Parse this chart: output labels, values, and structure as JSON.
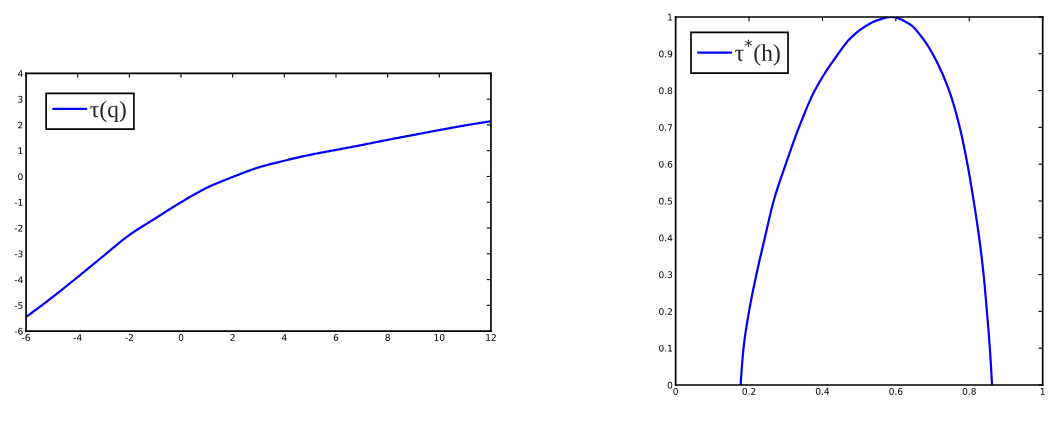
{
  "chart_data": [
    {
      "type": "line",
      "x": [
        -6,
        -5,
        -4,
        -3,
        -2,
        -1,
        0,
        1,
        2,
        3,
        4,
        5,
        6,
        7,
        8,
        9,
        10,
        11,
        12
      ],
      "series": [
        {
          "name": "τ(q)",
          "color": "#0000ff",
          "values": [
            -5.45,
            -4.7,
            -3.9,
            -3.08,
            -2.27,
            -1.63,
            -1.0,
            -0.44,
            -0.02,
            0.35,
            0.61,
            0.84,
            1.03,
            1.22,
            1.42,
            1.61,
            1.8,
            1.98,
            2.14
          ]
        }
      ],
      "xlim": [
        -6,
        12
      ],
      "xticks": [
        -6,
        -4,
        -2,
        0,
        2,
        4,
        6,
        8,
        10,
        12
      ],
      "ylim": [
        -6,
        4
      ],
      "yticks": [
        -6,
        -5,
        -4,
        -3,
        -2,
        -1,
        0,
        1,
        2,
        3,
        4
      ],
      "legend": "top left",
      "line_style": "solid"
    },
    {
      "type": "line",
      "x": [
        0.177,
        0.185,
        0.2,
        0.22,
        0.243,
        0.267,
        0.3,
        0.336,
        0.379,
        0.443,
        0.474,
        0.51,
        0.547,
        0.588,
        0.638,
        0.67,
        0.7,
        0.745,
        0.774,
        0.795,
        0.812,
        0.827,
        0.839,
        0.848,
        0.856,
        0.862
      ],
      "series": [
        {
          "name": "τ$^{*}$(h)",
          "color": "#0000ff",
          "values": [
            0,
            0.1,
            0.2,
            0.3,
            0.4,
            0.5,
            0.6,
            0.7,
            0.8,
            0.9,
            0.94,
            0.97,
            0.99,
            1,
            0.98,
            0.946,
            0.9,
            0.8,
            0.7,
            0.6,
            0.5,
            0.4,
            0.3,
            0.2,
            0.1,
            0
          ]
        }
      ],
      "xlim": [
        0,
        1
      ],
      "xticks": [
        0,
        0.2,
        0.4,
        0.6,
        0.8,
        1
      ],
      "ylim": [
        0,
        1
      ],
      "yticks": [
        0,
        0.1,
        0.2,
        0.3,
        0.4,
        0.5,
        0.6,
        0.7,
        0.8,
        0.9,
        1
      ],
      "legend": "top left",
      "line_style": "solid"
    }
  ]
}
